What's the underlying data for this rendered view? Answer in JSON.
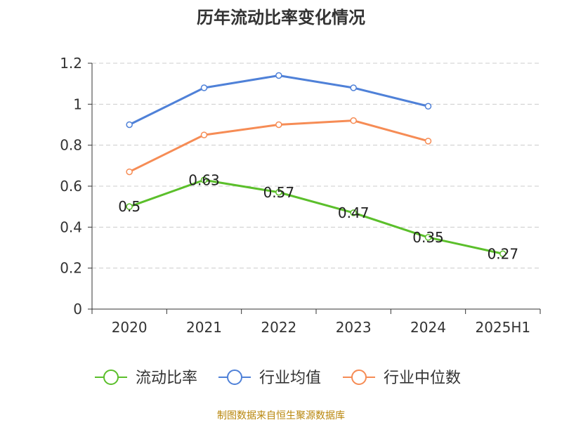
{
  "chart_data": {
    "type": "line",
    "title": "历年流动比率变化情况",
    "categories": [
      "2020",
      "2021",
      "2022",
      "2023",
      "2024",
      "2025H1"
    ],
    "ylim": [
      0,
      1.2
    ],
    "yticks": [
      "0",
      "0.2",
      "0.4",
      "0.6",
      "0.8",
      "1",
      "1.2"
    ],
    "grid": true,
    "legend_position": "bottom",
    "series": [
      {
        "name": "流动比率",
        "color": "#5bbf2b",
        "values": [
          0.5,
          0.63,
          0.57,
          0.47,
          0.35,
          0.27
        ],
        "labels": [
          "0.5",
          "0.63",
          "0.57",
          "0.47",
          "0.35",
          "0.27"
        ]
      },
      {
        "name": "行业均值",
        "color": "#4f81d8",
        "values": [
          0.9,
          1.08,
          1.14,
          1.08,
          0.99,
          null
        ]
      },
      {
        "name": "行业中位数",
        "color": "#f68c55",
        "values": [
          0.67,
          0.85,
          0.9,
          0.92,
          0.82,
          null
        ]
      }
    ],
    "source": "制图数据来自恒生聚源数据库"
  }
}
